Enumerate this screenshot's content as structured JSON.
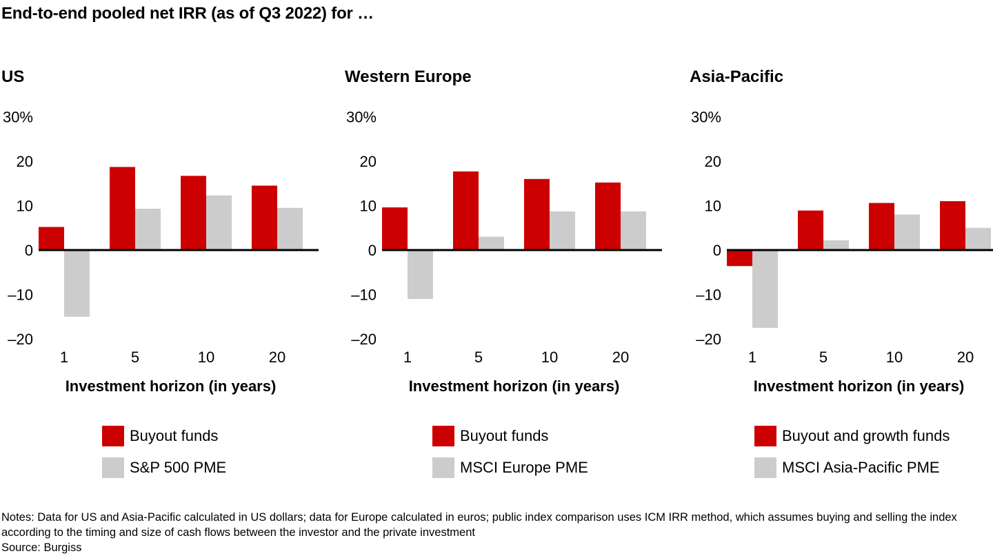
{
  "title": "End-to-end pooled net IRR (as of Q3 2022) for …",
  "colors": {
    "buyout": "#cc0000",
    "pme": "#cccccc"
  },
  "chart_data": [
    {
      "type": "bar",
      "title": "US",
      "categories": [
        "1",
        "5",
        "10",
        "20"
      ],
      "xlabel": "Investment horizon (in years)",
      "ylabel": "",
      "ylim": [
        -20,
        30
      ],
      "yticks": [
        "30%",
        "20",
        "10",
        "0",
        "–10",
        "–20"
      ],
      "series": [
        {
          "name": "Buyout funds",
          "values": [
            5.2,
            18.7,
            16.7,
            14.5
          ]
        },
        {
          "name": "S&P 500 PME",
          "values": [
            -15.0,
            9.3,
            12.3,
            9.5
          ]
        }
      ]
    },
    {
      "type": "bar",
      "title": "Western Europe",
      "categories": [
        "1",
        "5",
        "10",
        "20"
      ],
      "xlabel": "Investment horizon (in years)",
      "ylabel": "",
      "ylim": [
        -20,
        30
      ],
      "yticks": [
        "30%",
        "20",
        "10",
        "0",
        "–10",
        "–20"
      ],
      "series": [
        {
          "name": "Buyout funds",
          "values": [
            9.6,
            17.7,
            16.0,
            15.2
          ]
        },
        {
          "name": "MSCI Europe PME",
          "values": [
            -11.0,
            3.0,
            8.7,
            8.7
          ]
        }
      ]
    },
    {
      "type": "bar",
      "title": "Asia-Pacific",
      "categories": [
        "1",
        "5",
        "10",
        "20"
      ],
      "xlabel": "Investment horizon (in years)",
      "ylabel": "",
      "ylim": [
        -20,
        30
      ],
      "yticks": [
        "30%",
        "20",
        "10",
        "0",
        "–10",
        "–20"
      ],
      "series": [
        {
          "name": "Buyout and growth funds",
          "values": [
            -3.6,
            8.9,
            10.6,
            11.0
          ]
        },
        {
          "name": "MSCI Asia-Pacific PME",
          "values": [
            -17.5,
            2.2,
            8.0,
            5.0
          ]
        }
      ]
    }
  ],
  "notes": "Notes: Data for US and Asia-Pacific calculated in US dollars; data for Europe calculated in euros; public index comparison uses ICM IRR method, which assumes buying and selling the index according to the timing and size of cash flows between the investor and the private investment",
  "source": "Source: Burgiss"
}
